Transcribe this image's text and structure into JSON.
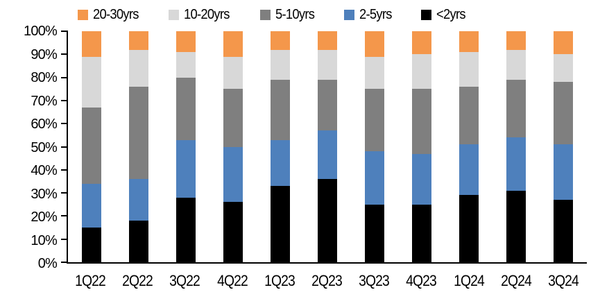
{
  "legend": {
    "position": "top",
    "items": [
      {
        "label": "20-30yrs",
        "color": "#F4974B"
      },
      {
        "label": "10-20yrs",
        "color": "#D8D8D8"
      },
      {
        "label": "5-10yrs",
        "color": "#7F7F7F"
      },
      {
        "label": "2-5yrs",
        "color": "#4E80BC"
      },
      {
        "label": "<2yrs",
        "color": "#000000"
      }
    ]
  },
  "chart_data": {
    "type": "bar",
    "subtype": "stacked-100-percent",
    "title": "",
    "xlabel": "",
    "ylabel": "",
    "units": "%",
    "ylim": [
      0,
      100
    ],
    "grid": false,
    "legend_position": "top",
    "y_tick_labels_top_to_bottom": [
      "100%",
      "90%",
      "80%",
      "70%",
      "60%",
      "50%",
      "40%",
      "30%",
      "20%",
      "10%",
      "0%"
    ],
    "categories": [
      "1Q22",
      "2Q22",
      "3Q22",
      "4Q22",
      "1Q23",
      "2Q23",
      "3Q23",
      "4Q23",
      "1Q24",
      "2Q24",
      "3Q24"
    ],
    "series": [
      {
        "name": "<2yrs",
        "color": "#000000",
        "values": [
          15,
          18,
          28,
          26,
          33,
          36,
          25,
          25,
          29,
          31,
          27
        ]
      },
      {
        "name": "2-5yrs",
        "color": "#4E80BC",
        "values": [
          19,
          18,
          25,
          24,
          20,
          21,
          23,
          22,
          22,
          23,
          24
        ]
      },
      {
        "name": "5-10yrs",
        "color": "#7F7F7F",
        "values": [
          33,
          40,
          27,
          25,
          26,
          22,
          27,
          28,
          25,
          25,
          27
        ]
      },
      {
        "name": "10-20yrs",
        "color": "#D8D8D8",
        "values": [
          22,
          16,
          11,
          14,
          13,
          13,
          14,
          15,
          15,
          13,
          12
        ]
      },
      {
        "name": "20-30yrs",
        "color": "#F4974B",
        "values": [
          11,
          8,
          9,
          11,
          8,
          8,
          11,
          10,
          9,
          8,
          10
        ]
      }
    ],
    "stack_order_bottom_to_top": [
      "<2yrs",
      "2-5yrs",
      "5-10yrs",
      "10-20yrs",
      "20-30yrs"
    ]
  },
  "axis": {
    "line_color": "#000000",
    "text_color": "#000000"
  }
}
